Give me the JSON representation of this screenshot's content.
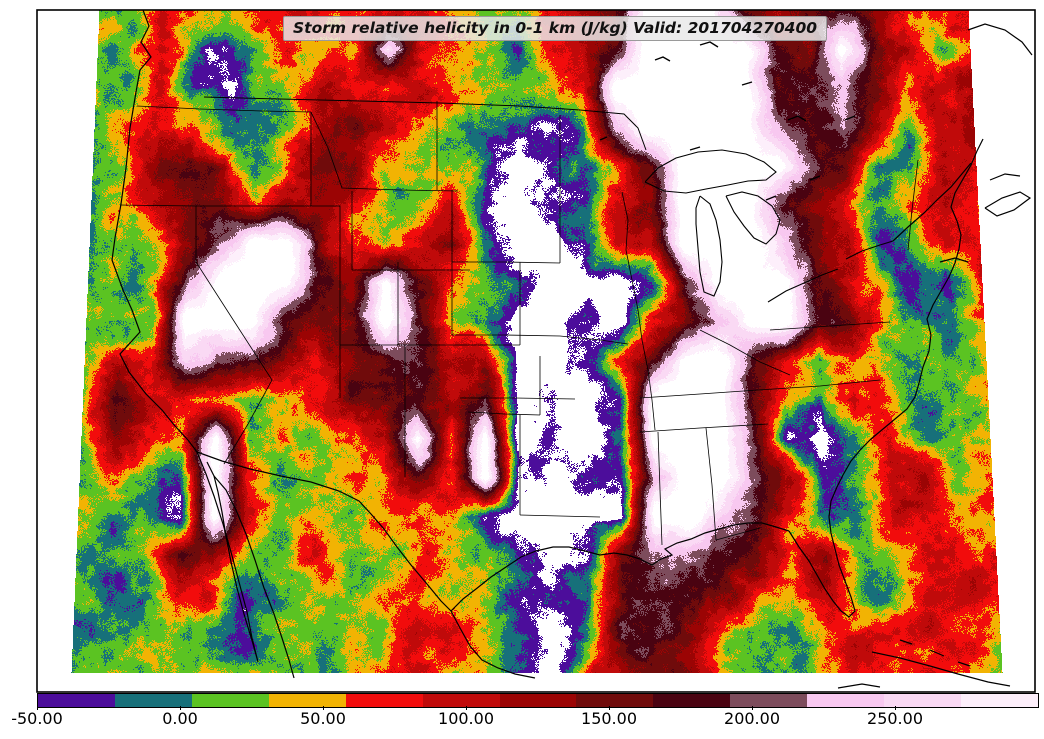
{
  "header": {
    "title": "Storm relative helicity in 0-1 km (J/kg) Valid: 201704270400"
  },
  "colorbar": {
    "tick_labels": [
      "-50.00",
      "0.00",
      "50.00",
      "100.00",
      "150.00",
      "200.00",
      "250.00"
    ],
    "tick_values": [
      -50,
      0,
      50,
      100,
      150,
      200,
      250
    ]
  },
  "chart_data": {
    "type": "heatmap",
    "title": "Storm relative helicity in 0-1 km (J/kg)",
    "valid": "201704270400",
    "variable": "storm relative helicity 0-1 km",
    "units": "J/kg",
    "levels": [
      -50,
      -25,
      0,
      25,
      50,
      75,
      100,
      125,
      150,
      175,
      200,
      225,
      250,
      275
    ],
    "colors": [
      "#4C0D9B",
      "#17707A",
      "#5BC322",
      "#F2B303",
      "#F20C0C",
      "#C00A0A",
      "#9B0404",
      "#700B0B",
      "#4A0311",
      "#7D4C5C",
      "#F8C8F0",
      "#FAD9F4",
      "#FDEFFB"
    ],
    "out_of_range_color": "#FFFFFF",
    "grid": {
      "cols": 28,
      "rows": 18,
      "values": [
        [
          12,
          12,
          62,
          62,
          12,
          62,
          87,
          62,
          37,
          62,
          62,
          37,
          12,
          37,
          62,
          110,
          135,
          300,
          300,
          300,
          135,
          110,
          135,
          160,
          135,
          62,
          62,
          62
        ],
        [
          12,
          12,
          87,
          -12,
          -37,
          12,
          62,
          37,
          62,
          250,
          87,
          62,
          12,
          -12,
          62,
          87,
          160,
          300,
          300,
          300,
          300,
          160,
          135,
          300,
          160,
          87,
          12,
          62
        ],
        [
          12,
          12,
          62,
          -37,
          -37,
          -12,
          37,
          87,
          62,
          37,
          87,
          37,
          12,
          -12,
          37,
          87,
          300,
          300,
          300,
          300,
          300,
          160,
          160,
          212,
          135,
          62,
          87,
          110
        ],
        [
          12,
          37,
          62,
          62,
          -12,
          -37,
          12,
          110,
          135,
          87,
          37,
          12,
          -12,
          -37,
          -37,
          -12,
          212,
          300,
          300,
          300,
          300,
          212,
          160,
          212,
          110,
          -12,
          87,
          135
        ],
        [
          12,
          37,
          110,
          135,
          110,
          -12,
          62,
          135,
          110,
          37,
          12,
          37,
          -12,
          -70,
          -37,
          -12,
          62,
          135,
          300,
          300,
          300,
          300,
          160,
          135,
          -37,
          -12,
          110,
          62
        ],
        [
          12,
          37,
          110,
          135,
          135,
          62,
          110,
          135,
          62,
          12,
          37,
          62,
          -37,
          -70,
          -37,
          -12,
          87,
          135,
          300,
          300,
          300,
          160,
          110,
          62,
          12,
          62,
          110,
          37
        ],
        [
          12,
          12,
          37,
          110,
          212,
          300,
          300,
          135,
          37,
          12,
          62,
          110,
          -12,
          -70,
          -70,
          -37,
          87,
          62,
          300,
          300,
          300,
          212,
          135,
          110,
          -37,
          12,
          87,
          62
        ],
        [
          12,
          -12,
          37,
          212,
          300,
          300,
          300,
          160,
          135,
          300,
          135,
          62,
          12,
          -37,
          -70,
          -70,
          -70,
          -12,
          135,
          300,
          300,
          300,
          135,
          87,
          12,
          -37,
          -37,
          87
        ],
        [
          12,
          -12,
          12,
          300,
          300,
          300,
          160,
          135,
          110,
          300,
          160,
          37,
          -12,
          -70,
          -70,
          -37,
          -70,
          62,
          110,
          212,
          300,
          300,
          160,
          135,
          37,
          12,
          -12,
          37
        ],
        [
          37,
          87,
          62,
          250,
          187,
          160,
          110,
          62,
          135,
          160,
          160,
          87,
          110,
          -70,
          -70,
          -37,
          62,
          160,
          300,
          300,
          160,
          87,
          -12,
          62,
          12,
          -12,
          -12,
          37
        ],
        [
          12,
          160,
          87,
          62,
          37,
          12,
          12,
          62,
          135,
          160,
          160,
          87,
          160,
          -70,
          -37,
          -70,
          -12,
          300,
          300,
          300,
          160,
          62,
          -12,
          87,
          37,
          -12,
          -12,
          37
        ],
        [
          12,
          135,
          62,
          37,
          300,
          12,
          37,
          12,
          62,
          110,
          300,
          62,
          300,
          -70,
          -37,
          -70,
          -37,
          300,
          300,
          300,
          187,
          -37,
          -70,
          12,
          62,
          -12,
          12,
          37
        ],
        [
          12,
          37,
          12,
          -37,
          300,
          62,
          12,
          12,
          37,
          62,
          135,
          62,
          300,
          -37,
          -70,
          -37,
          -37,
          212,
          300,
          300,
          187,
          110,
          -37,
          -12,
          87,
          110,
          12,
          37
        ],
        [
          12,
          -12,
          12,
          -37,
          300,
          62,
          12,
          37,
          12,
          37,
          62,
          37,
          -37,
          -70,
          -70,
          -70,
          -70,
          300,
          300,
          212,
          160,
          62,
          -12,
          12,
          87,
          62,
          37,
          37
        ],
        [
          12,
          -12,
          -12,
          135,
          110,
          37,
          12,
          62,
          12,
          12,
          37,
          62,
          12,
          -37,
          -70,
          -37,
          160,
          187,
          187,
          160,
          135,
          37,
          110,
          -12,
          37,
          87,
          62,
          62
        ],
        [
          12,
          -12,
          -12,
          87,
          62,
          -37,
          12,
          37,
          12,
          37,
          62,
          12,
          37,
          -37,
          -37,
          -12,
          160,
          160,
          160,
          135,
          62,
          37,
          110,
          -12,
          12,
          87,
          87,
          62
        ],
        [
          -12,
          -12,
          12,
          37,
          12,
          -37,
          12,
          12,
          37,
          12,
          110,
          62,
          12,
          -37,
          -70,
          -12,
          160,
          160,
          135,
          37,
          12,
          -12,
          62,
          87,
          62,
          87,
          62,
          37
        ],
        [
          -12,
          12,
          12,
          12,
          12,
          12,
          12,
          12,
          12,
          37,
          62,
          37,
          12,
          -37,
          -70,
          62,
          135,
          135,
          110,
          37,
          12,
          -12,
          62,
          62,
          62,
          62,
          37,
          37
        ]
      ]
    }
  }
}
